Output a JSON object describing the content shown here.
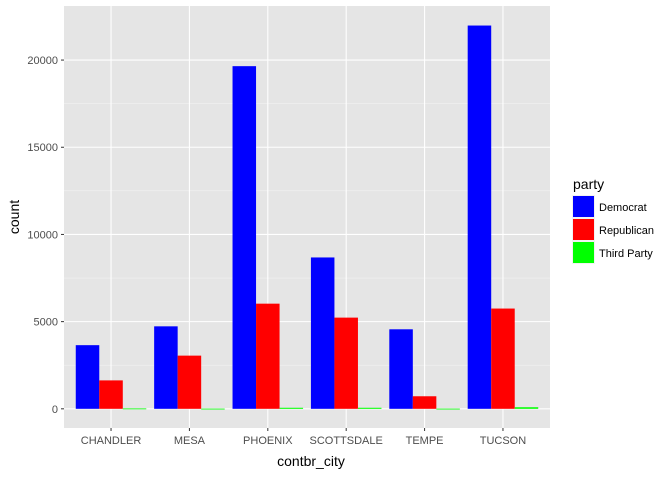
{
  "chart_data": {
    "type": "bar",
    "title": "",
    "xlabel": "contbr_city",
    "ylabel": "count",
    "categories": [
      "CHANDLER",
      "MESA",
      "PHOENIX",
      "SCOTTSDALE",
      "TEMPE",
      "TUCSON"
    ],
    "series": [
      {
        "name": "Democrat",
        "color": "#0000ff",
        "values": [
          3650,
          4730,
          19650,
          8680,
          4560,
          21980
        ]
      },
      {
        "name": "Republican",
        "color": "#ff0000",
        "values": [
          1630,
          3050,
          6030,
          5230,
          720,
          5750
        ]
      },
      {
        "name": "Third Party",
        "color": "#00ff00",
        "values": [
          20,
          10,
          60,
          60,
          10,
          90
        ]
      }
    ],
    "ylim": [
      -1100,
      23100
    ],
    "yticks": [
      0,
      5000,
      10000,
      15000,
      20000
    ],
    "ytick_labels": [
      "0",
      "5000",
      "10000",
      "15000",
      "20000"
    ],
    "legend": {
      "title": "party",
      "position": "right"
    },
    "grid": true,
    "background": "#e5e5e5"
  }
}
